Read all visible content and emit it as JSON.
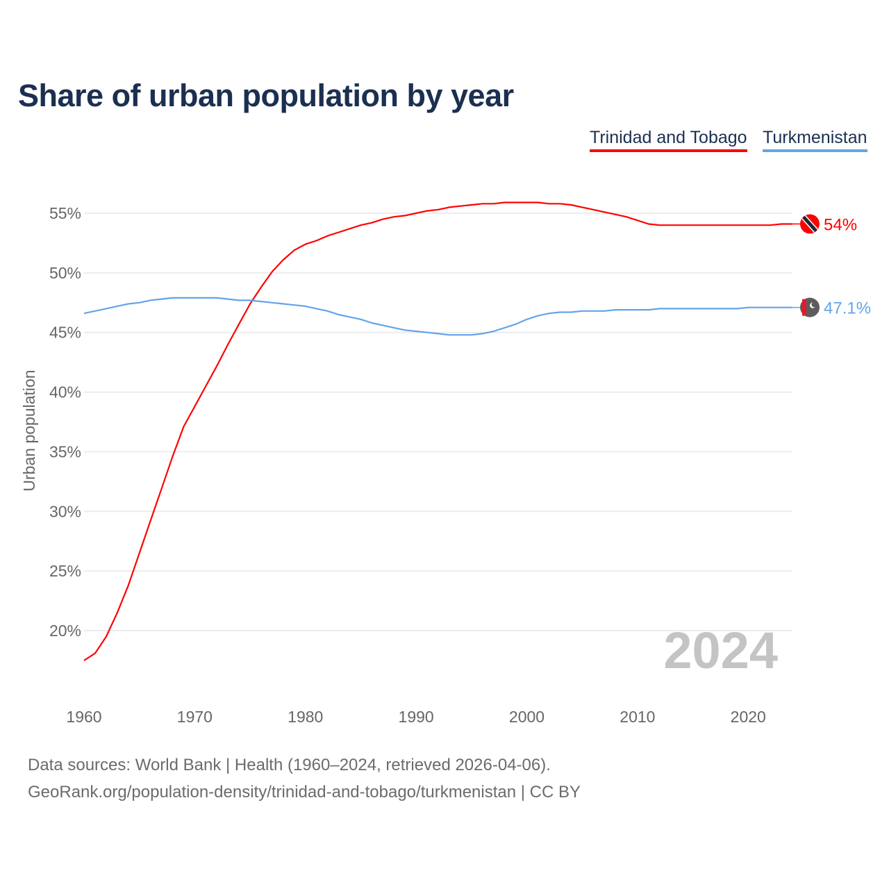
{
  "chart_data": {
    "type": "line",
    "title": "Share of urban population by year",
    "ylabel": "Urban population",
    "xlabel": "",
    "xlim": [
      1960,
      2024
    ],
    "ylim": [
      15,
      56.5
    ],
    "x_ticks": [
      1960,
      1970,
      1980,
      1990,
      2000,
      2010,
      2020
    ],
    "y_ticks": [
      20,
      25,
      30,
      35,
      40,
      45,
      50,
      55
    ],
    "y_tick_labels": [
      "20%",
      "25%",
      "30%",
      "35%",
      "40%",
      "45%",
      "50%",
      "55%"
    ],
    "grid": true,
    "legend_position": "top-right",
    "year_watermark": "2024",
    "x": [
      1960,
      1961,
      1962,
      1963,
      1964,
      1965,
      1966,
      1967,
      1968,
      1969,
      1970,
      1971,
      1972,
      1973,
      1974,
      1975,
      1976,
      1977,
      1978,
      1979,
      1980,
      1981,
      1982,
      1983,
      1984,
      1985,
      1986,
      1987,
      1988,
      1989,
      1990,
      1991,
      1992,
      1993,
      1994,
      1995,
      1996,
      1997,
      1998,
      1999,
      2000,
      2001,
      2002,
      2003,
      2004,
      2005,
      2006,
      2007,
      2008,
      2009,
      2010,
      2011,
      2012,
      2013,
      2014,
      2015,
      2016,
      2017,
      2018,
      2019,
      2020,
      2021,
      2022,
      2023,
      2024
    ],
    "series": [
      {
        "name": "Trinidad and Tobago",
        "color": "#ff0000",
        "end_label": "54%",
        "flag": "trinidad-and-tobago-flag",
        "values": [
          17.5,
          18.1,
          19.5,
          21.5,
          23.8,
          26.5,
          29.2,
          31.9,
          34.6,
          37.1,
          38.8,
          40.5,
          42.2,
          44.0,
          45.7,
          47.4,
          48.8,
          50.1,
          51.1,
          51.9,
          52.4,
          52.7,
          53.1,
          53.4,
          53.7,
          54.0,
          54.2,
          54.5,
          54.7,
          54.8,
          55.0,
          55.2,
          55.3,
          55.5,
          55.6,
          55.7,
          55.8,
          55.8,
          55.9,
          55.9,
          55.9,
          55.9,
          55.8,
          55.8,
          55.7,
          55.5,
          55.3,
          55.1,
          54.9,
          54.7,
          54.4,
          54.1,
          54.0,
          54.0,
          54.0,
          54.0,
          54.0,
          54.0,
          54.0,
          54.0,
          54.0,
          54.0,
          54.0,
          54.1,
          54.1
        ]
      },
      {
        "name": "Turkmenistan",
        "color": "#63a4e8",
        "end_label": "47.1%",
        "flag": "turkmenistan-flag",
        "values": [
          46.6,
          46.8,
          47.0,
          47.2,
          47.4,
          47.5,
          47.7,
          47.8,
          47.9,
          47.9,
          47.9,
          47.9,
          47.9,
          47.8,
          47.7,
          47.7,
          47.6,
          47.5,
          47.4,
          47.3,
          47.2,
          47.0,
          46.8,
          46.5,
          46.3,
          46.1,
          45.8,
          45.6,
          45.4,
          45.2,
          45.1,
          45.0,
          44.9,
          44.8,
          44.8,
          44.8,
          44.9,
          45.1,
          45.4,
          45.7,
          46.1,
          46.4,
          46.6,
          46.7,
          46.7,
          46.8,
          46.8,
          46.8,
          46.9,
          46.9,
          46.9,
          46.9,
          47.0,
          47.0,
          47.0,
          47.0,
          47.0,
          47.0,
          47.0,
          47.0,
          47.1,
          47.1,
          47.1,
          47.1,
          47.1
        ]
      }
    ]
  },
  "footer": {
    "sources": "Data sources: World Bank | Health (1960–2024, retrieved 2026-04-06).",
    "credit": "GeoRank.org/population-density/trinidad-and-tobago/turkmenistan | CC BY"
  }
}
